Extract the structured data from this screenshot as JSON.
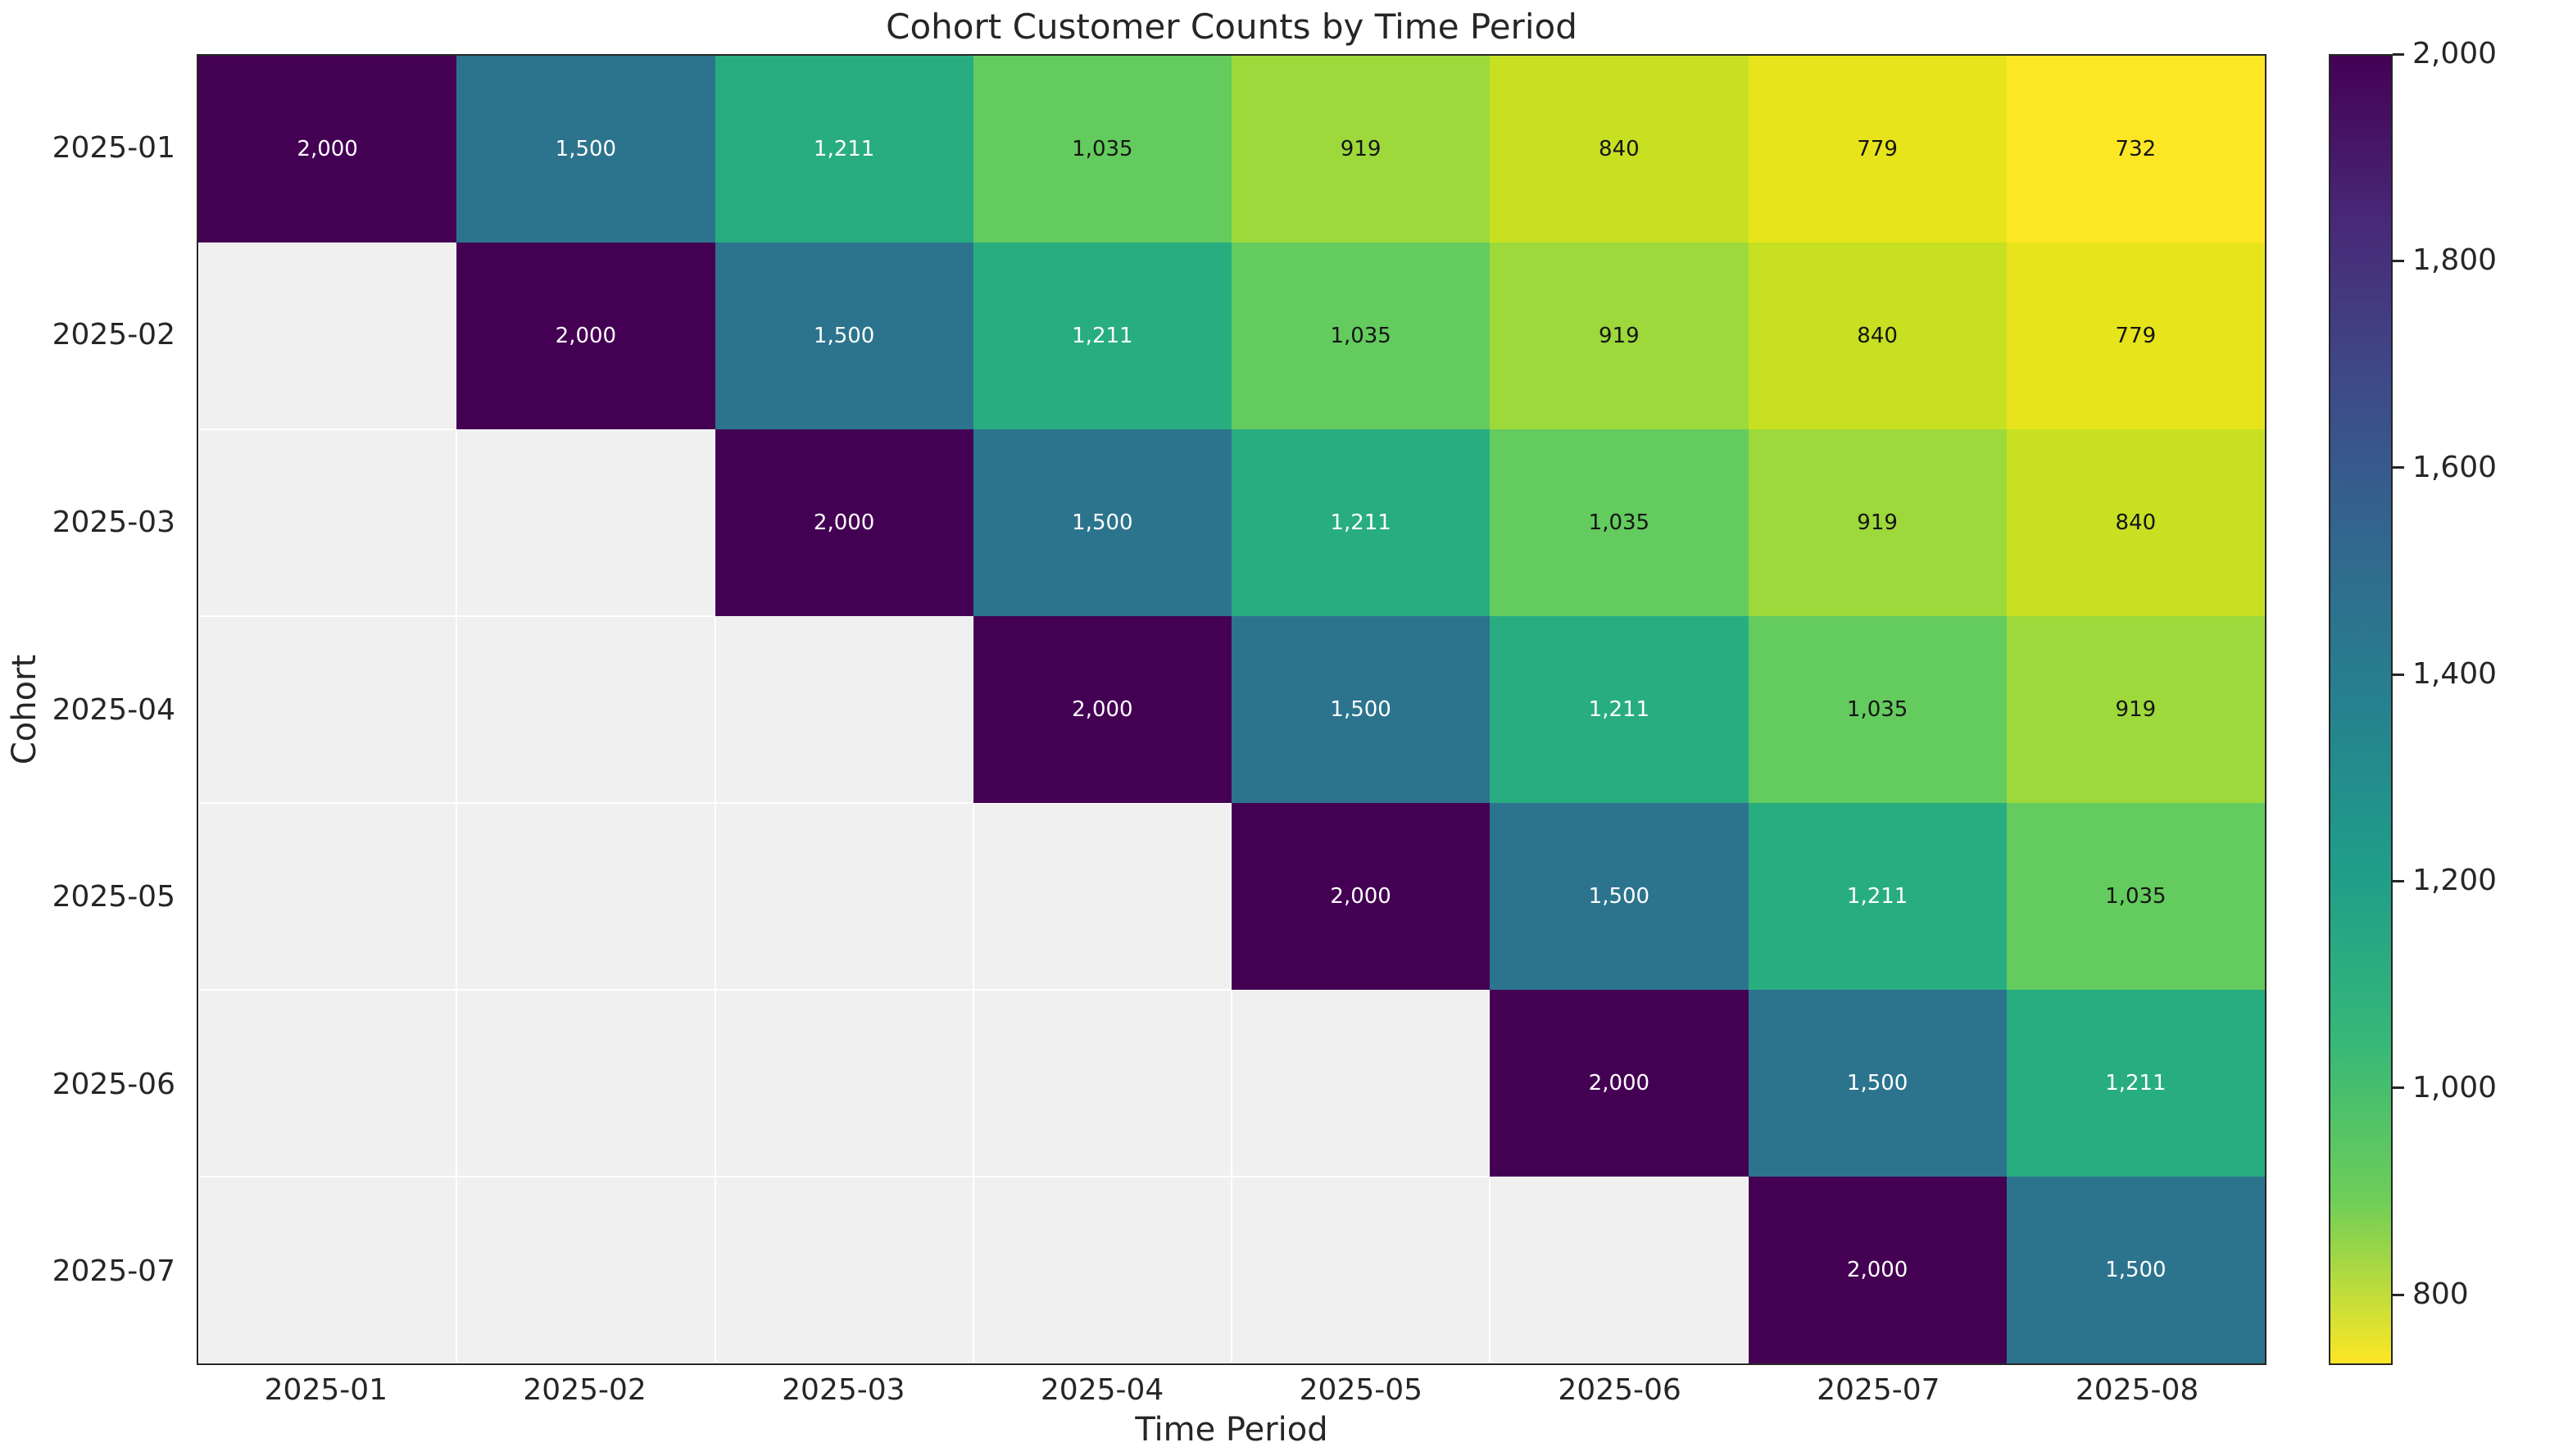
{
  "chart_data": {
    "type": "heatmap",
    "title": "Cohort Customer Counts by Time Period",
    "xlabel": "Time Period",
    "ylabel": "Cohort",
    "x_labels": [
      "2025-01",
      "2025-02",
      "2025-03",
      "2025-04",
      "2025-05",
      "2025-06",
      "2025-07",
      "2025-08"
    ],
    "y_labels": [
      "2025-01",
      "2025-02",
      "2025-03",
      "2025-04",
      "2025-05",
      "2025-06",
      "2025-07"
    ],
    "matrix": [
      [
        2000,
        1500,
        1211,
        1035,
        919,
        840,
        779,
        732
      ],
      [
        null,
        2000,
        1500,
        1211,
        1035,
        919,
        840,
        779
      ],
      [
        null,
        null,
        2000,
        1500,
        1211,
        1035,
        919,
        840
      ],
      [
        null,
        null,
        null,
        2000,
        1500,
        1211,
        1035,
        919
      ],
      [
        null,
        null,
        null,
        null,
        2000,
        1500,
        1211,
        1035
      ],
      [
        null,
        null,
        null,
        null,
        null,
        2000,
        1500,
        1211
      ],
      [
        null,
        null,
        null,
        null,
        null,
        null,
        2000,
        1500
      ]
    ],
    "colormap": "viridis_r",
    "vmin": 732,
    "vmax": 2000,
    "colorbar_ticks": [
      2000,
      1800,
      1600,
      1400,
      1200,
      1000,
      800
    ],
    "colorbar_tick_labels": [
      "2,000",
      "1,800",
      "1,600",
      "1,400",
      "1,200",
      "1,000",
      "800"
    ],
    "light_text_values": [
      2000,
      1500,
      1211
    ],
    "colors": {
      "masked_cell": "#f0f0f0",
      "grid_line": "#ffffff",
      "spine": "#262626",
      "text_light": "#ffffff",
      "text_dark": "#151515",
      "value_colors": {
        "2000": "#440154",
        "1500": "#2c748e",
        "1211": "#28ad80",
        "1035": "#64cb5e",
        "919": "#9dd93b",
        "840": "#c7e022",
        "779": "#e7e41b",
        "732": "#fde725"
      },
      "colorbar_gradient_stops": [
        "#440154",
        "#482878",
        "#3e4a89",
        "#31688e",
        "#26828e",
        "#1f9e89",
        "#35b779",
        "#6ece58",
        "#fde725"
      ]
    },
    "legend_position": "right-colorbar",
    "grid": "white-lines-on-masked-cells"
  }
}
